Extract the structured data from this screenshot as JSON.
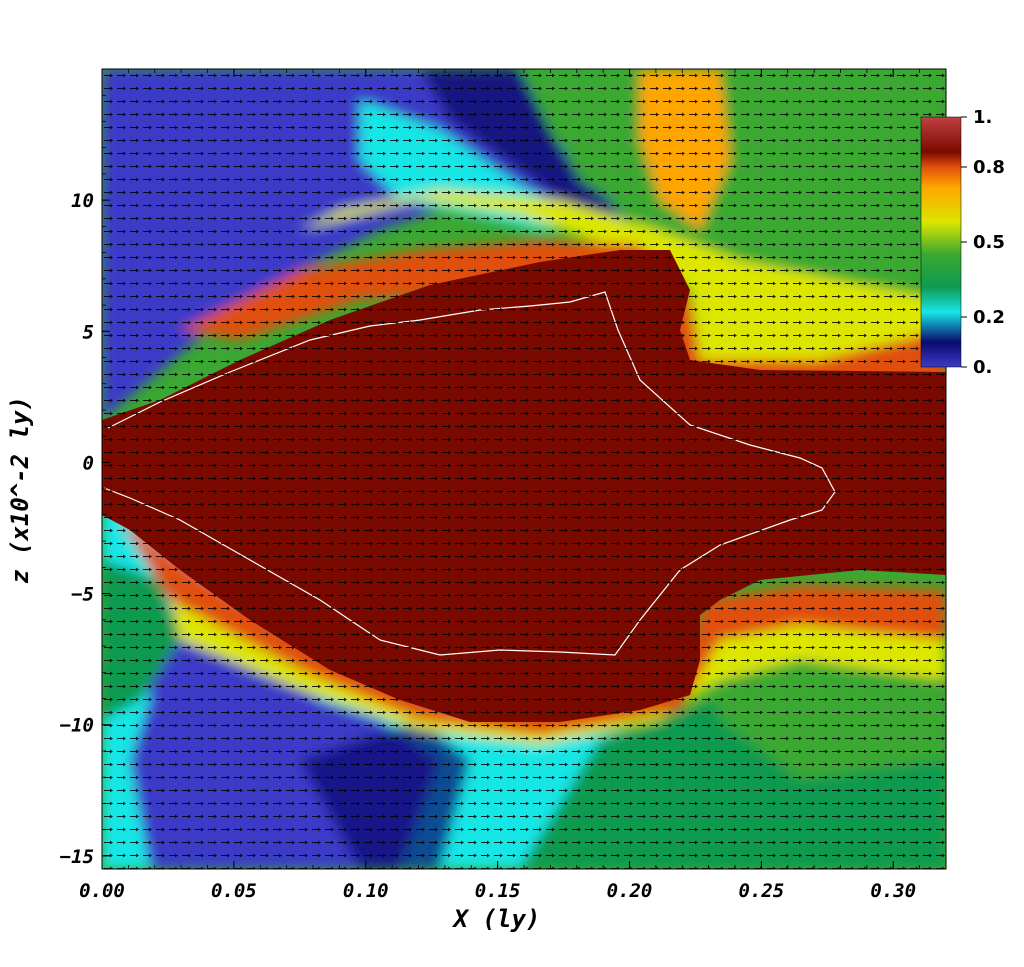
{
  "chart_data": {
    "type": "heatmap",
    "title": "",
    "xlabel": "X (ly)",
    "ylabel": "z (x10^-2 ly)",
    "xlim": [
      0.0,
      0.32
    ],
    "ylim": [
      -15.5,
      15
    ],
    "x_ticks": [
      {
        "value": 0.0,
        "label": "0.00"
      },
      {
        "value": 0.05,
        "label": "0.05"
      },
      {
        "value": 0.1,
        "label": "0.10"
      },
      {
        "value": 0.15,
        "label": "0.15"
      },
      {
        "value": 0.2,
        "label": "0.20"
      },
      {
        "value": 0.25,
        "label": "0.25"
      },
      {
        "value": 0.3,
        "label": "0.30"
      }
    ],
    "y_ticks": [
      {
        "value": 10,
        "label": "10"
      },
      {
        "value": 5,
        "label": "5"
      },
      {
        "value": 0,
        "label": "0"
      },
      {
        "value": -5,
        "label": "−5"
      },
      {
        "value": -10,
        "label": "−10"
      },
      {
        "value": -15,
        "label": "−15"
      }
    ],
    "colorbar": {
      "range": [
        0,
        1
      ],
      "ticks": [
        {
          "value": 1.0,
          "label": "1."
        },
        {
          "value": 0.8,
          "label": "0.8"
        },
        {
          "value": 0.5,
          "label": "0.5"
        },
        {
          "value": 0.2,
          "label": "0.2"
        },
        {
          "value": 0.0,
          "label": "0."
        }
      ],
      "colors": [
        "#3a3ac8",
        "#0a0a6e",
        "#17e6e6",
        "#0f9a50",
        "#3aa832",
        "#dce600",
        "#ffa500",
        "#e05010",
        "#7a0a00",
        "#c04040"
      ],
      "color_stops": [
        0,
        0.1,
        0.22,
        0.32,
        0.45,
        0.58,
        0.72,
        0.8,
        0.86,
        1.0
      ]
    },
    "colors": {
      "jet_core": "#7a0a00",
      "ambient_high": "#3aa832",
      "ambient_low": "#3a3ac8",
      "shear_layer": "#dce600",
      "contour": "#ffffff",
      "vectors": "#000000"
    },
    "regions": [
      {
        "name": "jet-core",
        "value": 0.86
      },
      {
        "name": "upper-left-cloud",
        "value": 0.05
      },
      {
        "name": "lower-left-cloud",
        "value": 0.15
      },
      {
        "name": "right-ambient",
        "value": 0.45
      }
    ],
    "vector_field": true,
    "contour_line": true
  }
}
